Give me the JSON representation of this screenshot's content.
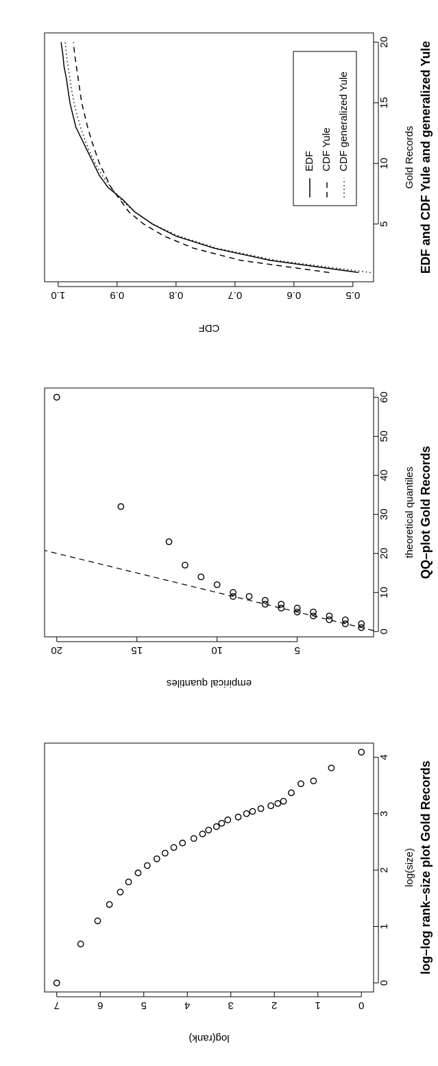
{
  "chart_data": [
    {
      "type": "scatter",
      "title": "log–log rank–size plot Gold Records",
      "x_label": "log(size)",
      "y_label": "log(rank)",
      "x": [
        0,
        0.69,
        1.1,
        1.39,
        1.61,
        1.79,
        1.95,
        2.08,
        2.2,
        2.3,
        2.4,
        2.48,
        2.56,
        2.64,
        2.71,
        2.77,
        2.83,
        2.89,
        2.94,
        3.0,
        3.04,
        3.09,
        3.14,
        3.18,
        3.22,
        3.37,
        3.53,
        3.58,
        3.81,
        4.09
      ],
      "values": [
        7.0,
        6.45,
        6.06,
        5.79,
        5.54,
        5.35,
        5.13,
        4.92,
        4.7,
        4.51,
        4.31,
        4.11,
        3.85,
        3.65,
        3.51,
        3.33,
        3.21,
        3.07,
        2.83,
        2.64,
        2.5,
        2.31,
        2.08,
        1.92,
        1.79,
        1.61,
        1.39,
        1.1,
        0.69,
        0
      ],
      "xlim": [
        -0.16,
        4.25
      ],
      "xticks": [
        0,
        1,
        2,
        3,
        4
      ],
      "ylim": [
        -0.28,
        7.28
      ],
      "yticks": [
        0,
        1,
        2,
        3,
        4,
        5,
        6,
        7
      ],
      "color": "#000000"
    },
    {
      "type": "scatter",
      "title": "QQ–plot Gold Records",
      "x_label": "theoretical quantiles",
      "y_label": "empirical quantiles",
      "x": [
        1,
        2,
        2,
        3,
        3,
        4,
        4,
        5,
        5,
        6,
        6,
        7,
        7,
        8,
        9,
        9,
        10,
        12,
        14,
        17,
        23,
        32,
        60
      ],
      "values": [
        1,
        1,
        2,
        2,
        3,
        3,
        4,
        4,
        5,
        5,
        6,
        6,
        7,
        7,
        8,
        9,
        9,
        10,
        11,
        12,
        13,
        16,
        20
      ],
      "reference_line": {
        "slope": 1,
        "intercept": 0
      },
      "xlim": [
        -1.36,
        62.36
      ],
      "xticks": [
        0,
        10,
        20,
        30,
        40,
        50,
        60
      ],
      "ylim": [
        0.24,
        20.76
      ],
      "yticks": [
        5,
        10,
        15,
        20
      ],
      "color": "#000000"
    },
    {
      "type": "line",
      "title": "EDF and CDF Yule and generalized Yule",
      "x_label": "Gold Records",
      "y_label": "CDF",
      "x": [
        1,
        2,
        3,
        4,
        5,
        6,
        7,
        8,
        9,
        10,
        11,
        12,
        13,
        14,
        15,
        16,
        17,
        18,
        19,
        20
      ],
      "series": [
        {
          "name": "EDF",
          "color": "#000000",
          "dash": "none",
          "values": [
            0.49,
            0.64,
            0.735,
            0.8,
            0.84,
            0.87,
            0.89,
            0.915,
            0.93,
            0.94,
            0.95,
            0.96,
            0.97,
            0.975,
            0.98,
            0.983,
            0.986,
            0.99,
            0.992,
            0.995
          ]
        },
        {
          "name": "CDF Yule",
          "color": "#000000",
          "dash": "8 6",
          "values": [
            0.54,
            0.69,
            0.77,
            0.82,
            0.855,
            0.88,
            0.895,
            0.91,
            0.92,
            0.93,
            0.937,
            0.944,
            0.95,
            0.955,
            0.96,
            0.963,
            0.966,
            0.969,
            0.972,
            0.974
          ]
        },
        {
          "name": "CDF generalized Yule",
          "color": "#000000",
          "dash": "1.5 4",
          "values": [
            0.47,
            0.63,
            0.73,
            0.795,
            0.84,
            0.87,
            0.893,
            0.91,
            0.925,
            0.937,
            0.947,
            0.955,
            0.962,
            0.968,
            0.973,
            0.977,
            0.98,
            0.983,
            0.986,
            0.988
          ]
        }
      ],
      "legend": "bottomright",
      "xlim": [
        0.24,
        20.76
      ],
      "xticks": [
        5,
        10,
        15,
        20
      ],
      "ylim": [
        0.465,
        1.023
      ],
      "yticks": [
        {
          "value": 0.5,
          "label": "0.5"
        },
        {
          "value": 0.6,
          "label": "0.6"
        },
        {
          "value": 0.7,
          "label": "0.7"
        },
        {
          "value": 0.8,
          "label": "0.8"
        },
        {
          "value": 0.9,
          "label": "0.9"
        },
        {
          "value": 1.0,
          "label": "1.0"
        }
      ]
    }
  ]
}
